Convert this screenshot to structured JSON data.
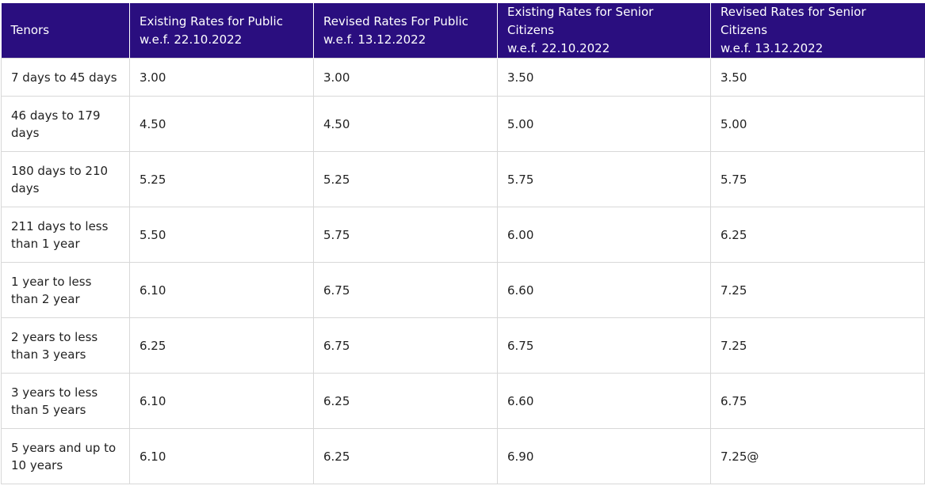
{
  "table": {
    "headers": [
      {
        "line1": "Tenors",
        "line2": ""
      },
      {
        "line1": "Existing Rates for Public",
        "line2": "w.e.f. 22.10.2022"
      },
      {
        "line1": "Revised Rates For Public",
        "line2": "w.e.f. 13.12.2022"
      },
      {
        "line1": "Existing Rates for Senior Citizens",
        "line2": "w.e.f. 22.10.2022"
      },
      {
        "line1": "Revised Rates for Senior Citizens",
        "line2": "w.e.f. 13.12.2022"
      }
    ],
    "rows": [
      [
        "7 days to 45 days",
        "3.00",
        "3.00",
        "3.50",
        "3.50"
      ],
      [
        "46 days to 179 days",
        "4.50",
        "4.50",
        "5.00",
        "5.00"
      ],
      [
        "180 days to 210 days",
        "5.25",
        "5.25",
        "5.75",
        "5.75"
      ],
      [
        "211 days to less than 1 year",
        "5.50",
        "5.75",
        "6.00",
        "6.25"
      ],
      [
        "1 year to less than 2 year",
        "6.10",
        "6.75",
        "6.60",
        "7.25"
      ],
      [
        "2 years to less than 3 years",
        "6.25",
        "6.75",
        "6.75",
        "7.25"
      ],
      [
        "3 years to less than 5 years",
        "6.10",
        "6.25",
        "6.60",
        "6.75"
      ],
      [
        "5 years and up to 10 years",
        "6.10",
        "6.25",
        "6.90",
        "7.25@"
      ]
    ]
  },
  "colors": {
    "header_bg": "#2a0e7f",
    "header_text": "#ffffff",
    "border": "#d8d8d8"
  }
}
